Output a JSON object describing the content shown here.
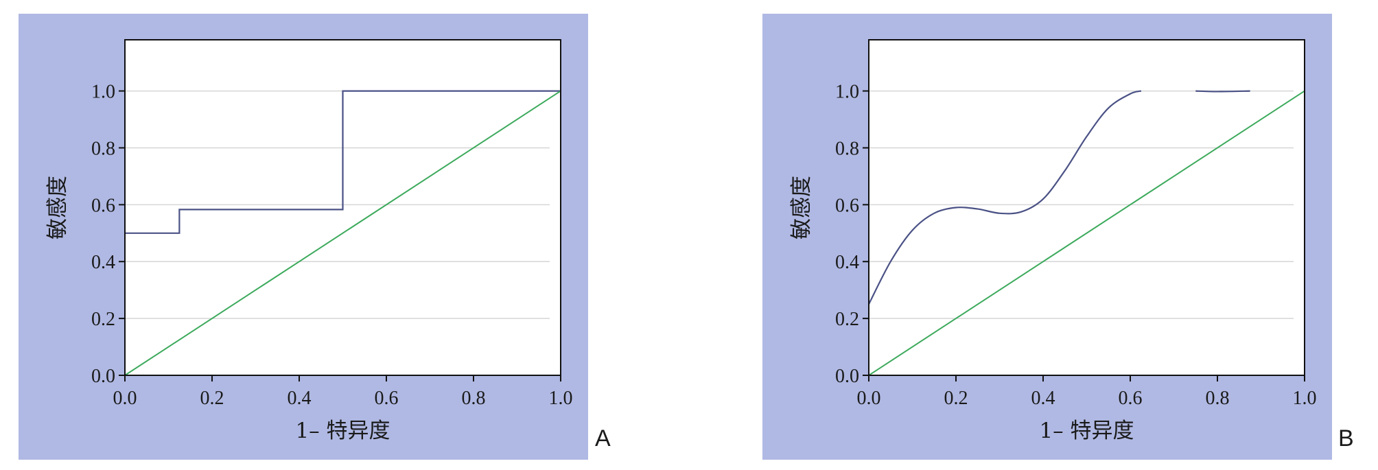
{
  "chart_data": [
    {
      "panel_label": "A",
      "type": "line",
      "xlabel": "1– 特异度",
      "ylabel": "敏感度",
      "xlim": [
        0,
        1
      ],
      "ylim": [
        0,
        1.18
      ],
      "xticks": [
        "0.0",
        "0.2",
        "0.4",
        "0.6",
        "0.8",
        "1.0"
      ],
      "yticks": [
        "0.0",
        "0.2",
        "0.4",
        "0.6",
        "0.8",
        "1.0"
      ],
      "grid": "horizontal",
      "series": [
        {
          "color": "#4a5185",
          "style": "step",
          "x": [
            0,
            0.125,
            0.125,
            0.5,
            0.5,
            1.0
          ],
          "y": [
            0.5,
            0.5,
            0.583,
            0.583,
            1.0,
            1.0
          ]
        },
        {
          "color": "#3daa5c",
          "style": "diagonal",
          "x": [
            0,
            1
          ],
          "y": [
            0,
            1
          ]
        }
      ]
    },
    {
      "panel_label": "B",
      "type": "line",
      "xlabel": "1– 特异度",
      "ylabel": "敏感度",
      "xlim": [
        0,
        1
      ],
      "ylim": [
        0,
        1.18
      ],
      "xticks": [
        "0.0",
        "0.2",
        "0.4",
        "0.6",
        "0.8",
        "1.0"
      ],
      "yticks": [
        "0.0",
        "0.2",
        "0.4",
        "0.6",
        "0.8",
        "1.0"
      ],
      "grid": "horizontal",
      "series": [
        {
          "color": "#4a5185",
          "style": "smooth",
          "x": [
            0,
            0.05,
            0.1,
            0.15,
            0.2,
            0.25,
            0.3,
            0.35,
            0.4,
            0.45,
            0.5,
            0.55,
            0.6,
            0.625
          ],
          "y": [
            0.25,
            0.4,
            0.51,
            0.57,
            0.59,
            0.585,
            0.57,
            0.575,
            0.62,
            0.72,
            0.84,
            0.94,
            0.99,
            1.0
          ]
        },
        {
          "color": "#4a5185",
          "style": "smooth",
          "x": [
            0.75,
            0.8,
            0.875
          ],
          "y": [
            1.0,
            0.998,
            1.0
          ]
        },
        {
          "color": "#3daa5c",
          "style": "diagonal",
          "x": [
            0,
            1
          ],
          "y": [
            0,
            1
          ]
        }
      ]
    }
  ]
}
